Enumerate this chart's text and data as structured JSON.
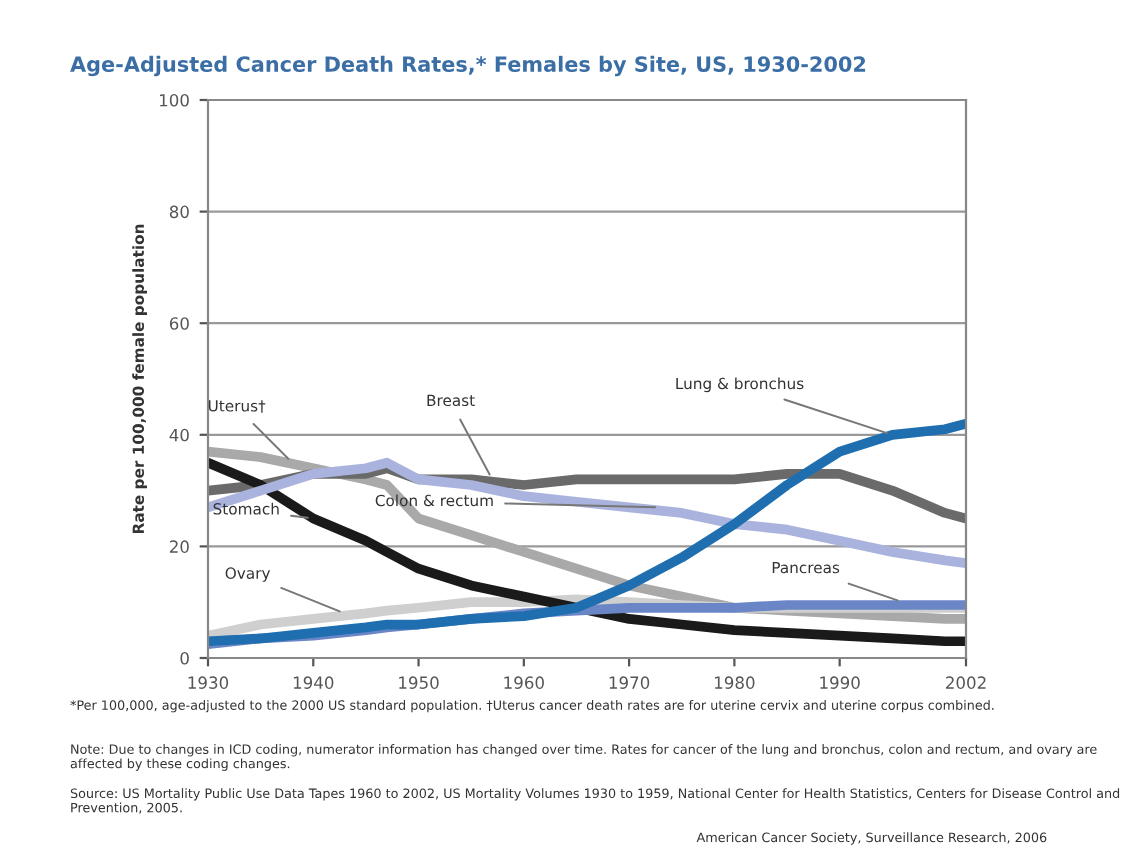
{
  "chart_data": {
    "type": "line",
    "title": "Age-Adjusted Cancer Death Rates,* Females by Site, US, 1930-2002",
    "ylabel": "Rate per 100,000 female population",
    "xlim": [
      1930,
      2002
    ],
    "xticks": [
      1930,
      1940,
      1950,
      1960,
      1970,
      1980,
      1990,
      2002
    ],
    "ylim": [
      0,
      100
    ],
    "yticks": [
      0,
      20,
      40,
      60,
      80,
      100
    ],
    "grid": "y",
    "marker": "none",
    "line_style": "solid",
    "x": [
      1930,
      1935,
      1940,
      1945,
      1947,
      1950,
      1955,
      1960,
      1965,
      1970,
      1975,
      1980,
      1985,
      1990,
      1995,
      2000,
      2002
    ],
    "series": [
      {
        "color": "#a9a9a9",
        "values": [
          37,
          36,
          34,
          32,
          31,
          25,
          22,
          19,
          16,
          13,
          11,
          9,
          8.5,
          8,
          7.5,
          7,
          7
        ]
      },
      {
        "color": "#6a6a6a",
        "values": [
          30,
          31,
          33,
          33,
          34,
          32,
          32,
          31,
          32,
          32,
          32,
          32,
          33,
          33,
          30,
          26,
          25
        ]
      },
      {
        "color": "#cfcfcf",
        "values": [
          4,
          6,
          7,
          8,
          8.5,
          9,
          10,
          10,
          10.5,
          10,
          9.5,
          9,
          9,
          9,
          9,
          9,
          9
        ]
      },
      {
        "color": "#1a1a1a",
        "values": [
          35,
          31,
          25,
          21,
          19,
          16,
          13,
          11,
          9,
          7,
          6,
          5,
          4.5,
          4,
          3.5,
          3,
          3
        ]
      },
      {
        "color": "#aab3dd",
        "values": [
          27,
          30,
          33,
          34,
          35,
          32,
          31,
          29,
          28,
          27,
          26,
          24,
          23,
          21,
          19,
          17.5,
          17
        ]
      },
      {
        "color": "#6b86c6",
        "values": [
          2.5,
          3.5,
          4,
          5,
          5.5,
          6,
          7,
          8,
          8.5,
          9,
          9,
          9,
          9.5,
          9.5,
          9.5,
          9.5,
          9.5
        ]
      },
      {
        "color": "#1f6fb0",
        "values": [
          3,
          3.5,
          4.5,
          5.5,
          6,
          6,
          7,
          7.5,
          9,
          13,
          18,
          24,
          31,
          37,
          40,
          41,
          42
        ]
      }
    ],
    "annotations": [
      {
        "text": "Uterus†",
        "x": 1938,
        "y": 35
      },
      {
        "text": "Breast",
        "x": 1957,
        "y": 32
      },
      {
        "text": "Lung & bronchus",
        "x": 1995,
        "y": 40
      },
      {
        "text": "Stomach",
        "x": 1940,
        "y": 25
      },
      {
        "text": "Colon & rectum",
        "x": 1973,
        "y": 27
      },
      {
        "text": "Ovary",
        "x": 1943,
        "y": 8
      },
      {
        "text": "Pancreas",
        "x": 1996,
        "y": 10
      },
      "*Per 100,000, age-adjusted to the 2000 US standard population. †Uterus cancer death rates are for uterine cervix and uterine corpus combined.",
      "Note: Due to changes in ICD coding, numerator information has changed over time. Rates for cancer of the lung and bronchus, colon and rectum, and ovary are affected by these coding changes.",
      "Source: US Mortality Public Use Data Tapes 1960 to 2002, US Mortality Volumes 1930 to 1959, National Center for Health Statistics, Centers for Disease Control and Prevention, 2005.",
      "American Cancer Society, Surveillance Research, 2006"
    ]
  }
}
